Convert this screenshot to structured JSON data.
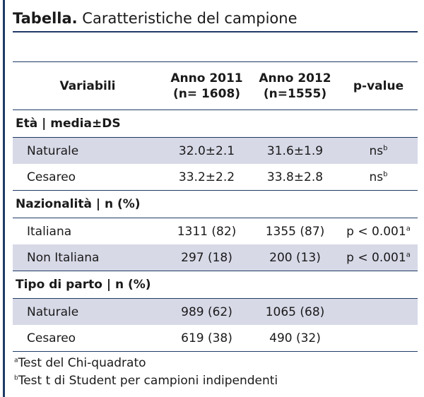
{
  "title": {
    "bold": "Tabella.",
    "rest": " Caratteristiche del campione"
  },
  "header": {
    "col1": "Variabili",
    "col2_line1": "Anno 2011",
    "col2_line2": "(n= 1608)",
    "col3_line1": "Anno 2012",
    "col3_line2": "(n=1555)",
    "col4": "p-value"
  },
  "sections": [
    {
      "label": "Età | media±DS",
      "rows": [
        {
          "label": "Naturale",
          "y2011": "32.0±2.1",
          "y2012": "31.6±1.9",
          "p": "ns",
          "p_sup": "b"
        },
        {
          "label": "Cesareo",
          "y2011": "33.2±2.2",
          "y2012": "33.8±2.8",
          "p": "ns",
          "p_sup": "b"
        }
      ]
    },
    {
      "label": "Nazionalità | n (%)",
      "rows": [
        {
          "label": "Italiana",
          "y2011": "1311 (82)",
          "y2012": "1355 (87)",
          "p": "p < 0.001",
          "p_sup": "a"
        },
        {
          "label": "Non Italiana",
          "y2011": "297 (18)",
          "y2012": "200 (13)",
          "p": "p < 0.001",
          "p_sup": "a"
        }
      ]
    },
    {
      "label": "Tipo di parto | n (%)",
      "rows": [
        {
          "label": "Naturale",
          "y2011": "989 (62)",
          "y2012": "1065 (68)",
          "p": "",
          "p_sup": ""
        },
        {
          "label": "Cesareo",
          "y2011": "619 (38)",
          "y2012": "490 (32)",
          "p": "",
          "p_sup": ""
        }
      ]
    }
  ],
  "footnotes": [
    {
      "mark": "a",
      "text": "Test del Chi-quadrato"
    },
    {
      "mark": "b",
      "text": "Test t di Student per campioni indipendenti"
    }
  ],
  "colors": {
    "accent": "#1f3a66",
    "shade": "#d7d9e7"
  }
}
